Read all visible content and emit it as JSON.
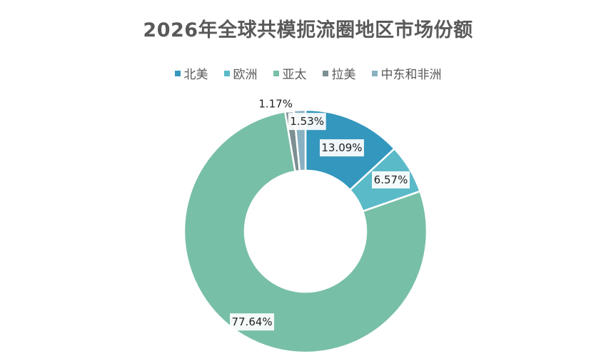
{
  "chart_data": {
    "type": "pie",
    "title": "2026年全球共模扼流圈地区市场份额",
    "categories": [
      "北美",
      "欧洲",
      "亚太",
      "拉美",
      "中东和非洲"
    ],
    "values": [
      13.09,
      6.57,
      77.64,
      1.17,
      1.53
    ],
    "labels": [
      "13.09%",
      "6.57%",
      "77.64%",
      "1.17%",
      "1.53%"
    ],
    "colors": [
      "#3497bd",
      "#5bbac8",
      "#78bfa7",
      "#7c8f92",
      "#8ab1c2"
    ],
    "hole_ratio": 0.5,
    "legend_position": "top"
  }
}
